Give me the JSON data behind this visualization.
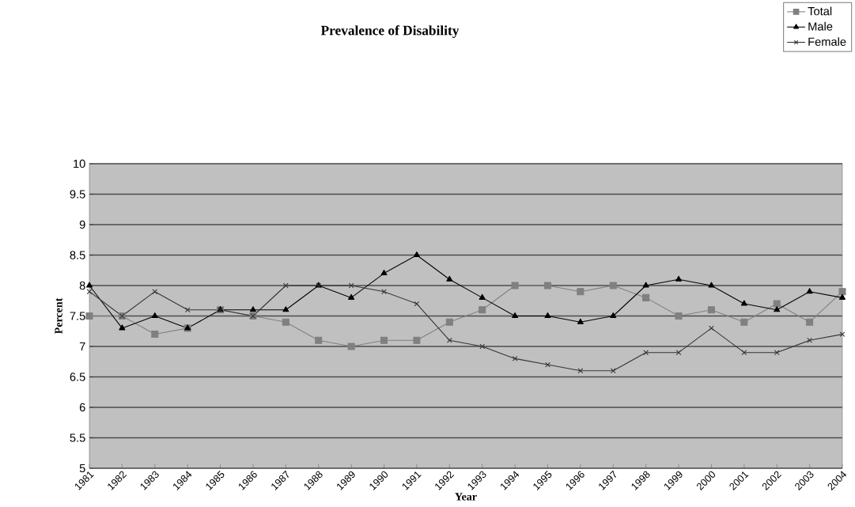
{
  "chart_data": {
    "type": "line",
    "title": "Prevalence of Disability",
    "xlabel": "Year",
    "ylabel": "Percent",
    "categories": [
      "1981",
      "1982",
      "1983",
      "1984",
      "1985",
      "1986",
      "1987",
      "1988",
      "1989",
      "1990",
      "1991",
      "1992",
      "1993",
      "1994",
      "1995",
      "1996",
      "1997",
      "1998",
      "1999",
      "2000",
      "2001",
      "2002",
      "2003",
      "2004"
    ],
    "series": [
      {
        "name": "Total",
        "color": "#808080",
        "marker": "square",
        "values": [
          7.5,
          7.5,
          7.2,
          7.3,
          7.6,
          7.5,
          7.4,
          7.1,
          7.0,
          7.1,
          7.1,
          7.4,
          7.6,
          8.0,
          8.0,
          7.9,
          8.0,
          7.8,
          7.5,
          7.6,
          7.4,
          7.7,
          7.4,
          7.9
        ]
      },
      {
        "name": "Male",
        "color": "#000000",
        "marker": "triangle",
        "values": [
          8.0,
          7.3,
          7.5,
          7.3,
          7.6,
          7.6,
          7.6,
          8.0,
          7.8,
          8.2,
          8.5,
          8.1,
          7.8,
          7.5,
          7.5,
          7.4,
          7.5,
          8.0,
          8.1,
          8.0,
          7.7,
          7.6,
          7.9,
          7.8
        ]
      },
      {
        "name": "Female",
        "color": "#333333",
        "marker": "cross",
        "values": [
          7.9,
          7.5,
          7.9,
          7.6,
          7.6,
          7.5,
          8.0,
          8.0,
          8.0,
          7.9,
          7.7,
          7.1,
          7.0,
          6.8,
          6.7,
          6.6,
          6.6,
          6.9,
          6.9,
          7.3,
          6.9,
          6.9,
          7.1,
          7.2
        ]
      }
    ],
    "ylim": [
      5,
      10
    ],
    "yticks": [
      5,
      5.5,
      6,
      6.5,
      7,
      7.5,
      8,
      8.5,
      9,
      9.5,
      10
    ],
    "grid": "y",
    "legend": "top right",
    "line_style": "solid"
  }
}
